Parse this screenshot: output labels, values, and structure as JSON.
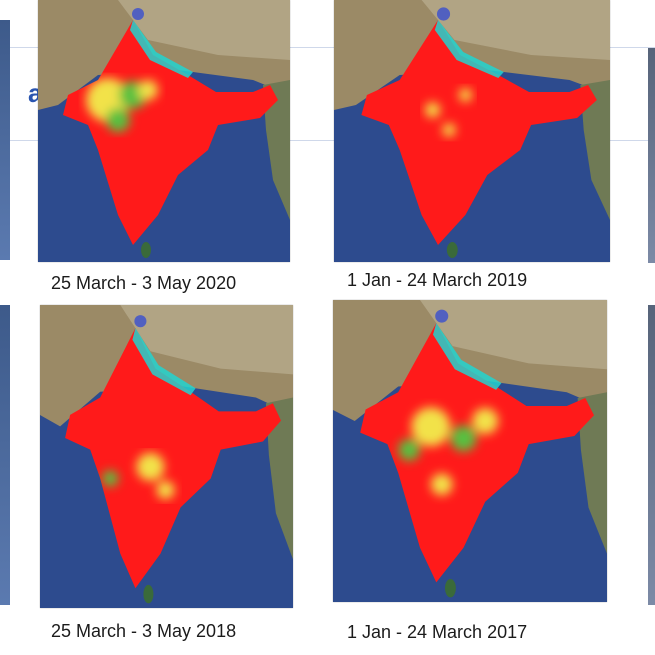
{
  "panels": [
    {
      "caption": "25 March - 3 May 2020",
      "map_image": "india-pollution-heatmap",
      "dominant_color": "#ff1a1a"
    },
    {
      "caption": "1 Jan - 24 March 2019",
      "map_image": "india-pollution-heatmap",
      "dominant_color": "#ff1a1a"
    },
    {
      "caption": "25 March - 3 May 2018",
      "map_image": "india-pollution-heatmap",
      "dominant_color": "#ff1a1a"
    },
    {
      "caption": "1 Jan - 24 March 2017",
      "map_image": "india-pollution-heatmap",
      "dominant_color": "#ff1a1a"
    }
  ],
  "colors": {
    "ocean": "#2d4b8e",
    "land": "#9b8a66",
    "mountains": "#b7aa8c",
    "heat_red": "#ff1a1a",
    "heat_yellow": "#f2e24a",
    "heat_green": "#58c040",
    "heat_cyan": "#22d4d0",
    "heat_blue": "#3a4fd0"
  }
}
